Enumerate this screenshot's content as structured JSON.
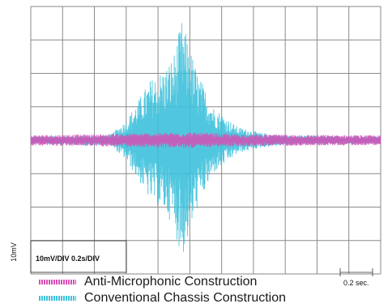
{
  "chart_data": {
    "type": "line",
    "title": "",
    "xlabel": "",
    "ylabel": "",
    "grid": true,
    "grid_divisions": {
      "x": 11,
      "y": 8
    },
    "x_unit": "sec",
    "y_unit": "mV",
    "scale_label": "10mV/DIV 0.2s/DIV",
    "y_scale_marker": "10mV",
    "time_marker": "0.2 sec.",
    "xlim": [
      0,
      2.2
    ],
    "ylim": [
      -40,
      40
    ],
    "series": [
      {
        "name": "Anti-Microphonic Construction",
        "color": "#d64fb4",
        "amplitude_profile": {
          "x": [
            0,
            0.4,
            0.8,
            1.0,
            1.2,
            1.5,
            2.2
          ],
          "y": [
            1.6,
            1.8,
            2.2,
            2.4,
            2.0,
            1.7,
            1.5
          ]
        }
      },
      {
        "name": "Conventional Chassis Construction",
        "color": "#3ec1dc",
        "amplitude_profile": {
          "x": [
            0,
            0.5,
            0.6,
            0.75,
            0.85,
            0.9,
            0.95,
            1.05,
            1.15,
            1.3,
            1.45,
            1.6,
            2.2
          ],
          "y": [
            1.2,
            1.6,
            6,
            18,
            22,
            26,
            36,
            20,
            10,
            4,
            2.2,
            1.5,
            1.2
          ]
        }
      }
    ],
    "legend": {
      "placement": "bottom-left",
      "entries": [
        {
          "label": "Anti-Microphonic Construction",
          "color": "#d64fb4"
        },
        {
          "label": "Conventional Chassis Construction",
          "color": "#3ec1dc"
        }
      ]
    }
  }
}
